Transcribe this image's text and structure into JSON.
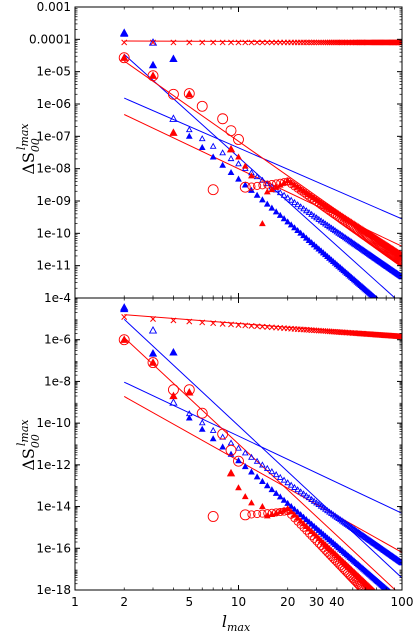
{
  "colors": {
    "red": "#ff0000",
    "blue": "#0000ff"
  },
  "xlabel": {
    "base": "l",
    "sub": "max"
  },
  "ylabel": {
    "base": "ΔS",
    "sub": "00",
    "sup_base": "l",
    "sup_sub": "max"
  },
  "chart_data": [
    {
      "type": "scatter",
      "xscale": "log",
      "yscale": "log",
      "xlim": [
        1,
        100
      ],
      "ylim": [
        1e-12,
        0.001
      ],
      "yticks": [
        {
          "v": 0.001,
          "label": "0.001"
        },
        {
          "v": 0.0001,
          "label": "0.0001"
        },
        {
          "v": 1e-05,
          "label": "1e-05"
        },
        {
          "v": 1e-06,
          "label": "1e-06"
        },
        {
          "v": 1e-07,
          "label": "1e-07"
        },
        {
          "v": 1e-08,
          "label": "1e-08"
        },
        {
          "v": 1e-09,
          "label": "1e-09"
        },
        {
          "v": 1e-10,
          "label": "1e-10"
        },
        {
          "v": 1e-11,
          "label": "1e-11"
        }
      ],
      "series": [
        {
          "marker": "x",
          "color": "red",
          "model": "flat",
          "a": 8e-05,
          "b": 0,
          "x_start": 2
        },
        {
          "marker": "open-triangle",
          "color": "blue",
          "model": "power",
          "a": 4.5e-05,
          "b": -3.5,
          "x_start": 4,
          "sparse": [
            [
              2,
              0.00016
            ],
            [
              3,
              8e-05
            ]
          ]
        },
        {
          "marker": "filled-triangle",
          "color": "blue",
          "model": "power",
          "a": 0.00012,
          "b": -4.4,
          "x_start": 5,
          "sparse": [
            [
              2,
              0.00015
            ],
            [
              3,
              1.6e-05
            ],
            [
              4,
              2.5e-05
            ]
          ]
        },
        {
          "marker": "circle",
          "color": "red",
          "model": "bump",
          "x_start": 2,
          "sparse": [
            [
              2,
              2.7e-05
            ],
            [
              3,
              7.5e-06
            ],
            [
              4,
              2e-06
            ],
            [
              5,
              2.1e-06
            ],
            [
              6,
              8.5e-07
            ],
            [
              8,
              3.5e-07
            ],
            [
              9,
              1.5e-07
            ],
            [
              10,
              8e-08
            ]
          ],
          "bump_peak": 4e-09,
          "tail_slope": -3.6
        },
        {
          "marker": "filled-triangle",
          "color": "red",
          "model": "bump",
          "x_start": 15,
          "sparse": [
            [
              2,
              2.7e-05
            ],
            [
              3,
              7.5e-06
            ],
            [
              4,
              1.3e-07
            ],
            [
              5,
              2e-06
            ],
            [
              9,
              4e-08
            ],
            [
              10,
              2.3e-08
            ],
            [
              11,
              1.2e-08
            ],
            [
              12,
              6e-09
            ],
            [
              14,
              2e-10
            ]
          ],
          "bump_peak": 4.3e-09,
          "tail_slope": -3.3
        }
      ],
      "lines": [
        {
          "color": "blue",
          "a": 0.0008,
          "b": -4.55,
          "x_range": [
            2,
            100
          ]
        },
        {
          "color": "blue",
          "a": 7e-06,
          "b": -2.2,
          "x_range": [
            2,
            100
          ]
        },
        {
          "color": "red",
          "a": 0.00025,
          "b": -3.55,
          "x_range": [
            2,
            100
          ]
        },
        {
          "color": "red",
          "a": 2.5e-06,
          "b": -2.4,
          "x_range": [
            2,
            100
          ]
        },
        {
          "color": "red",
          "a": 9e-05,
          "b": -0.02,
          "x_range": [
            2,
            100
          ]
        }
      ]
    },
    {
      "type": "scatter",
      "xscale": "log",
      "yscale": "log",
      "xlim": [
        1,
        100
      ],
      "ylim": [
        1e-18,
        0.0001
      ],
      "yticks": [
        {
          "v": 0.0001,
          "label": "1e-4"
        },
        {
          "v": 1e-06,
          "label": "1e-6"
        },
        {
          "v": 1e-08,
          "label": "1e-8"
        },
        {
          "v": 1e-10,
          "label": "1e-10"
        },
        {
          "v": 1e-12,
          "label": "1e-12"
        },
        {
          "v": 1e-14,
          "label": "1e-14"
        },
        {
          "v": 1e-16,
          "label": "1e-16"
        },
        {
          "v": 1e-18,
          "label": "1e-18"
        }
      ],
      "xticks": [
        {
          "v": 1,
          "label": "1"
        },
        {
          "v": 2,
          "label": "2"
        },
        {
          "v": 5,
          "label": "5"
        },
        {
          "v": 10,
          "label": "10"
        },
        {
          "v": 20,
          "label": "20"
        },
        {
          "v": 30,
          "label": "30"
        },
        {
          "v": 40,
          "label": "40"
        },
        {
          "v": 100,
          "label": "100"
        }
      ],
      "series": [
        {
          "marker": "x",
          "color": "red",
          "model": "power",
          "a": 1.8e-05,
          "b": -0.55,
          "x_start": 2
        },
        {
          "marker": "open-triangle",
          "color": "blue",
          "model": "power",
          "a": 2e-06,
          "b": -5.5,
          "x_start": 4,
          "sparse": [
            [
              2,
              3.5e-05
            ],
            [
              3,
              2.8e-06
            ]
          ]
        },
        {
          "marker": "filled-triangle",
          "color": "blue",
          "model": "power",
          "a": 1e-05,
          "b": -6.8,
          "x_start": 5,
          "sparse": [
            [
              2,
              3e-05
            ],
            [
              3,
              2.2e-07
            ],
            [
              4,
              2.5e-07
            ]
          ]
        },
        {
          "marker": "circle",
          "color": "red",
          "model": "bump",
          "x_start": 2,
          "sparse": [
            [
              2,
              1e-06
            ],
            [
              3,
              8e-08
            ],
            [
              4,
              4e-09
            ],
            [
              5,
              4e-09
            ],
            [
              6,
              3e-10
            ],
            [
              8,
              3e-11
            ],
            [
              9,
              5e-12
            ],
            [
              10,
              1.5e-12
            ]
          ],
          "bump_peak": 6e-15,
          "tail_slope": -8.2
        },
        {
          "marker": "filled-triangle",
          "color": "red",
          "model": "bump",
          "x_start": 15,
          "sparse": [
            [
              2,
              1e-06
            ],
            [
              3,
              8e-08
            ],
            [
              4,
              2e-09
            ],
            [
              5,
              3e-09
            ],
            [
              9,
              4e-13
            ],
            [
              10,
              8e-14
            ],
            [
              11,
              3e-14
            ],
            [
              12,
              1.5e-14
            ],
            [
              14,
              1e-14
            ]
          ],
          "bump_peak": 8e-15,
          "tail_slope": -7.5
        }
      ],
      "lines": [
        {
          "color": "blue",
          "a": 0.0015,
          "b": -7.3,
          "x_range": [
            2,
            100
          ]
        },
        {
          "color": "blue",
          "a": 1.2e-07,
          "b": -3.7,
          "x_range": [
            2,
            100
          ]
        },
        {
          "color": "red",
          "a": 0.0002,
          "b": -7.3,
          "x_range": [
            2,
            100
          ]
        },
        {
          "color": "red",
          "a": 4e-08,
          "b": -4.4,
          "x_range": [
            2,
            100
          ]
        },
        {
          "color": "red",
          "a": 2.4e-05,
          "b": -0.6,
          "x_range": [
            2,
            100
          ]
        }
      ]
    }
  ]
}
